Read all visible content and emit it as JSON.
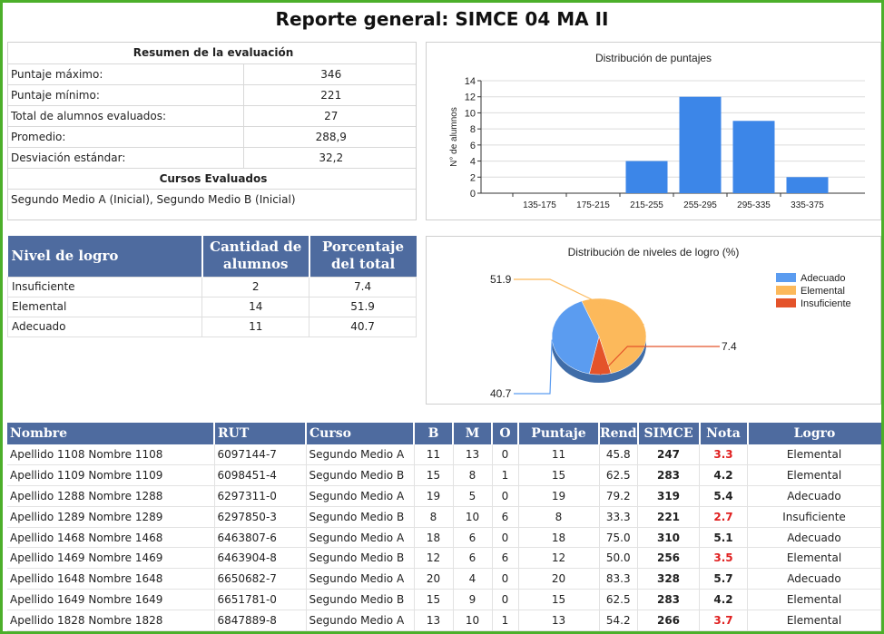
{
  "page_title": "Reporte general: SIMCE 04 MA II",
  "summary": {
    "header": "Resumen de la evaluación",
    "rows": [
      {
        "label": "Puntaje máximo:",
        "value": "346"
      },
      {
        "label": "Puntaje mínimo:",
        "value": "221"
      },
      {
        "label": "Total de alumnos evaluados:",
        "value": "27"
      },
      {
        "label": "Promedio:",
        "value": "288,9"
      },
      {
        "label": "Desviación estándar:",
        "value": "32,2"
      }
    ],
    "cursos_header": "Cursos Evaluados",
    "cursos_text": "Segundo Medio A (Inicial), Segundo Medio B (Inicial)"
  },
  "chart_data": [
    {
      "type": "bar",
      "title": "Distribución de puntajes",
      "ylabel": "N° de alumnos",
      "xlabel": "",
      "categories": [
        "135-175",
        "175-215",
        "215-255",
        "255-295",
        "295-335",
        "335-375"
      ],
      "values": [
        0,
        0,
        4,
        12,
        9,
        2
      ],
      "ylim": [
        0,
        14
      ],
      "yticks": [
        "0",
        "2",
        "4",
        "6",
        "8",
        "10",
        "12",
        "14"
      ],
      "grid": true,
      "color": "#3c86e8"
    },
    {
      "type": "pie",
      "title": "Distribución de niveles de logro (%)",
      "legend_position": "right",
      "slices": [
        {
          "name": "Adecuado",
          "value": 40.7,
          "label": "40.7",
          "color": "#5b9cf0"
        },
        {
          "name": "Elemental",
          "value": 51.9,
          "label": "51.9",
          "color": "#fcb95b"
        },
        {
          "name": "Insuficiente",
          "value": 7.4,
          "label": "7.4",
          "color": "#e4532a"
        }
      ]
    }
  ],
  "nivel_table": {
    "headers": [
      "Nivel de logro",
      "Cantidad de alumnos",
      "Porcentaje del total"
    ],
    "rows": [
      [
        "Insuficiente",
        "2",
        "7.4"
      ],
      [
        "Elemental",
        "14",
        "51.9"
      ],
      [
        "Adecuado",
        "11",
        "40.7"
      ]
    ]
  },
  "students": {
    "headers": [
      "Nombre",
      "RUT",
      "Curso",
      "B",
      "M",
      "O",
      "Puntaje",
      "Rend",
      "SIMCE",
      "Nota",
      "Logro"
    ],
    "rows": [
      [
        "Apellido 1108 Nombre 1108",
        "6097144-7",
        "Segundo Medio A",
        "11",
        "13",
        "0",
        "11",
        "45.8",
        "247",
        "3.3",
        "Elemental"
      ],
      [
        "Apellido 1109 Nombre 1109",
        "6098451-4",
        "Segundo Medio B",
        "15",
        "8",
        "1",
        "15",
        "62.5",
        "283",
        "4.2",
        "Elemental"
      ],
      [
        "Apellido 1288 Nombre 1288",
        "6297311-0",
        "Segundo Medio A",
        "19",
        "5",
        "0",
        "19",
        "79.2",
        "319",
        "5.4",
        "Adecuado"
      ],
      [
        "Apellido 1289 Nombre 1289",
        "6297850-3",
        "Segundo Medio B",
        "8",
        "10",
        "6",
        "8",
        "33.3",
        "221",
        "2.7",
        "Insuficiente"
      ],
      [
        "Apellido 1468 Nombre 1468",
        "6463807-6",
        "Segundo Medio A",
        "18",
        "6",
        "0",
        "18",
        "75.0",
        "310",
        "5.1",
        "Adecuado"
      ],
      [
        "Apellido 1469 Nombre 1469",
        "6463904-8",
        "Segundo Medio B",
        "12",
        "6",
        "6",
        "12",
        "50.0",
        "256",
        "3.5",
        "Elemental"
      ],
      [
        "Apellido 1648 Nombre 1648",
        "6650682-7",
        "Segundo Medio A",
        "20",
        "4",
        "0",
        "20",
        "83.3",
        "328",
        "5.7",
        "Adecuado"
      ],
      [
        "Apellido 1649 Nombre 1649",
        "6651781-0",
        "Segundo Medio B",
        "15",
        "9",
        "0",
        "15",
        "62.5",
        "283",
        "4.2",
        "Elemental"
      ],
      [
        "Apellido 1828 Nombre 1828",
        "6847889-8",
        "Segundo Medio A",
        "13",
        "10",
        "1",
        "13",
        "54.2",
        "266",
        "3.7",
        "Elemental"
      ]
    ],
    "failing_color": "#e02020"
  }
}
